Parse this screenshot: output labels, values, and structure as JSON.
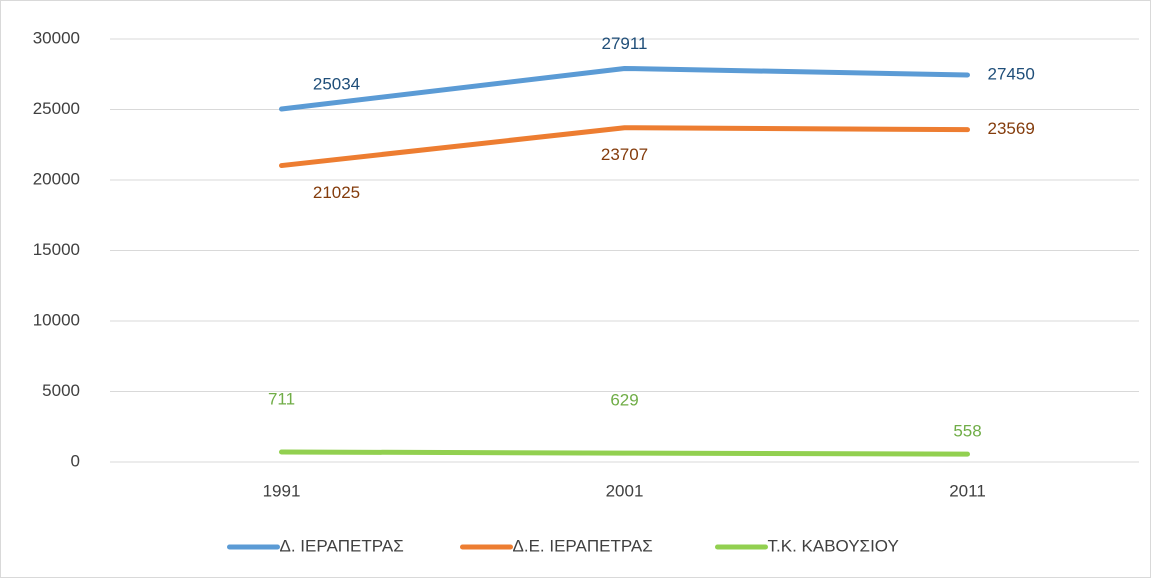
{
  "chart_data": {
    "type": "line",
    "categories": [
      "1991",
      "2001",
      "2011"
    ],
    "series": [
      {
        "name": "Δ. ΙΕΡΑΠΕΤΡΑΣ",
        "color": "#5b9bd5",
        "label_color": "#1f4e79",
        "values": [
          25034,
          27911,
          27450
        ]
      },
      {
        "name": "Δ.Ε. ΙΕΡΑΠΕΤΡΑΣ",
        "color": "#ed7d31",
        "label_color": "#843c0c",
        "values": [
          21025,
          23707,
          23569
        ]
      },
      {
        "name": "Τ.Κ. ΚΑΒΟΥΣΙΟΥ",
        "color": "#92d050",
        "label_color": "#70ad47",
        "values": [
          711,
          629,
          558
        ]
      }
    ],
    "ylim": [
      0,
      30000
    ],
    "yticks": [
      0,
      5000,
      10000,
      15000,
      20000,
      25000,
      30000
    ],
    "grid": true,
    "legend": "bottom"
  }
}
